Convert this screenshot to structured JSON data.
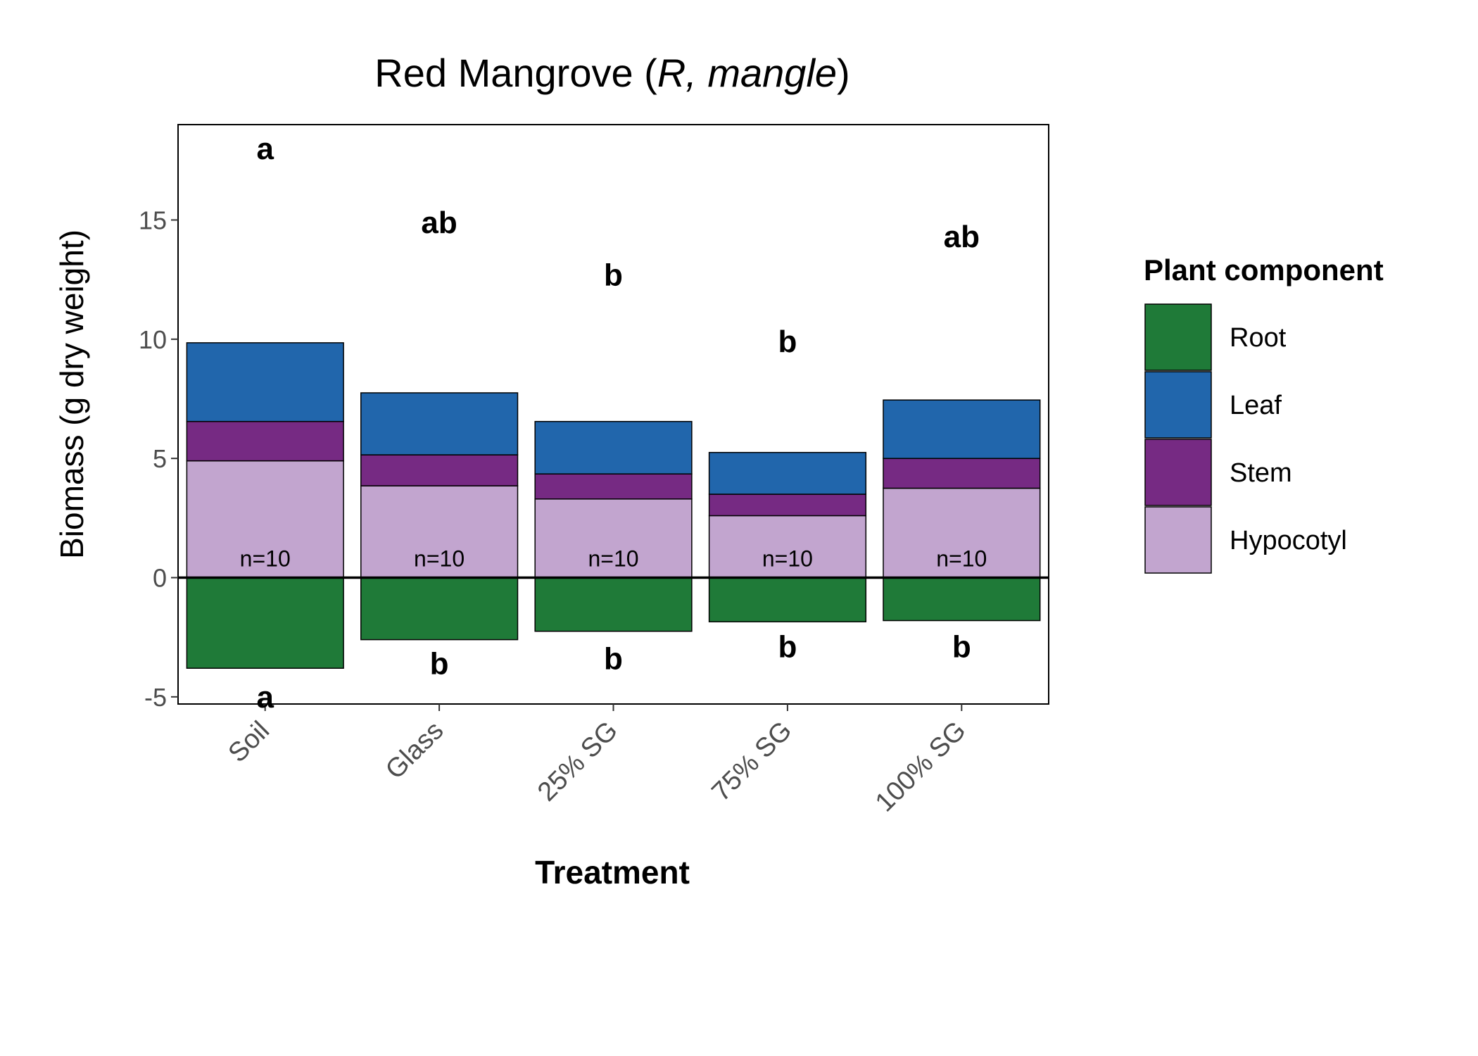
{
  "chart_data": {
    "type": "bar",
    "stacked": true,
    "title": {
      "main": "Red Mangrove (",
      "italic": "R, mangle",
      "close": ")"
    },
    "xlabel": "Treatment",
    "ylabel": "Biomass (g dry weight)",
    "ylim": [
      -5.3,
      19
    ],
    "yticks": [
      -5,
      0,
      5,
      10,
      15
    ],
    "ytick_labels": [
      "-5",
      "0",
      "5",
      "10",
      "15"
    ],
    "categories": [
      "Soil",
      "Glass",
      "25% SG",
      "75% SG",
      "100% SG"
    ],
    "legend": {
      "title": "Plant component",
      "position": "right",
      "entries": [
        "Root",
        "Leaf",
        "Stem",
        "Hypocotyl"
      ]
    },
    "series": [
      {
        "name": "Root",
        "color": "#1f7a38",
        "values": [
          -3.8,
          -2.6,
          -2.25,
          -1.85,
          -1.8
        ]
      },
      {
        "name": "Hypocotyl",
        "color": "#c2a5cf",
        "values": [
          4.9,
          3.85,
          3.3,
          2.6,
          3.75
        ]
      },
      {
        "name": "Stem",
        "color": "#762a83",
        "values": [
          1.65,
          1.3,
          1.05,
          0.9,
          1.25
        ]
      },
      {
        "name": "Leaf",
        "color": "#2166ac",
        "values": [
          3.3,
          2.6,
          2.2,
          1.75,
          2.45
        ]
      }
    ],
    "upper_letters": [
      "a",
      "ab",
      "b",
      "b",
      "ab"
    ],
    "upper_letter_y": [
      18.0,
      14.9,
      12.7,
      9.9,
      14.3
    ],
    "lower_letters": [
      "a",
      "b",
      "b",
      "b",
      "b"
    ],
    "lower_letter_y": [
      -5.0,
      -3.6,
      -3.4,
      -2.9,
      -2.9
    ],
    "n_labels": [
      "n=10",
      "n=10",
      "n=10",
      "n=10",
      "n=10"
    ],
    "n_label_y": 0.8,
    "grid": false,
    "zero_line": true
  }
}
